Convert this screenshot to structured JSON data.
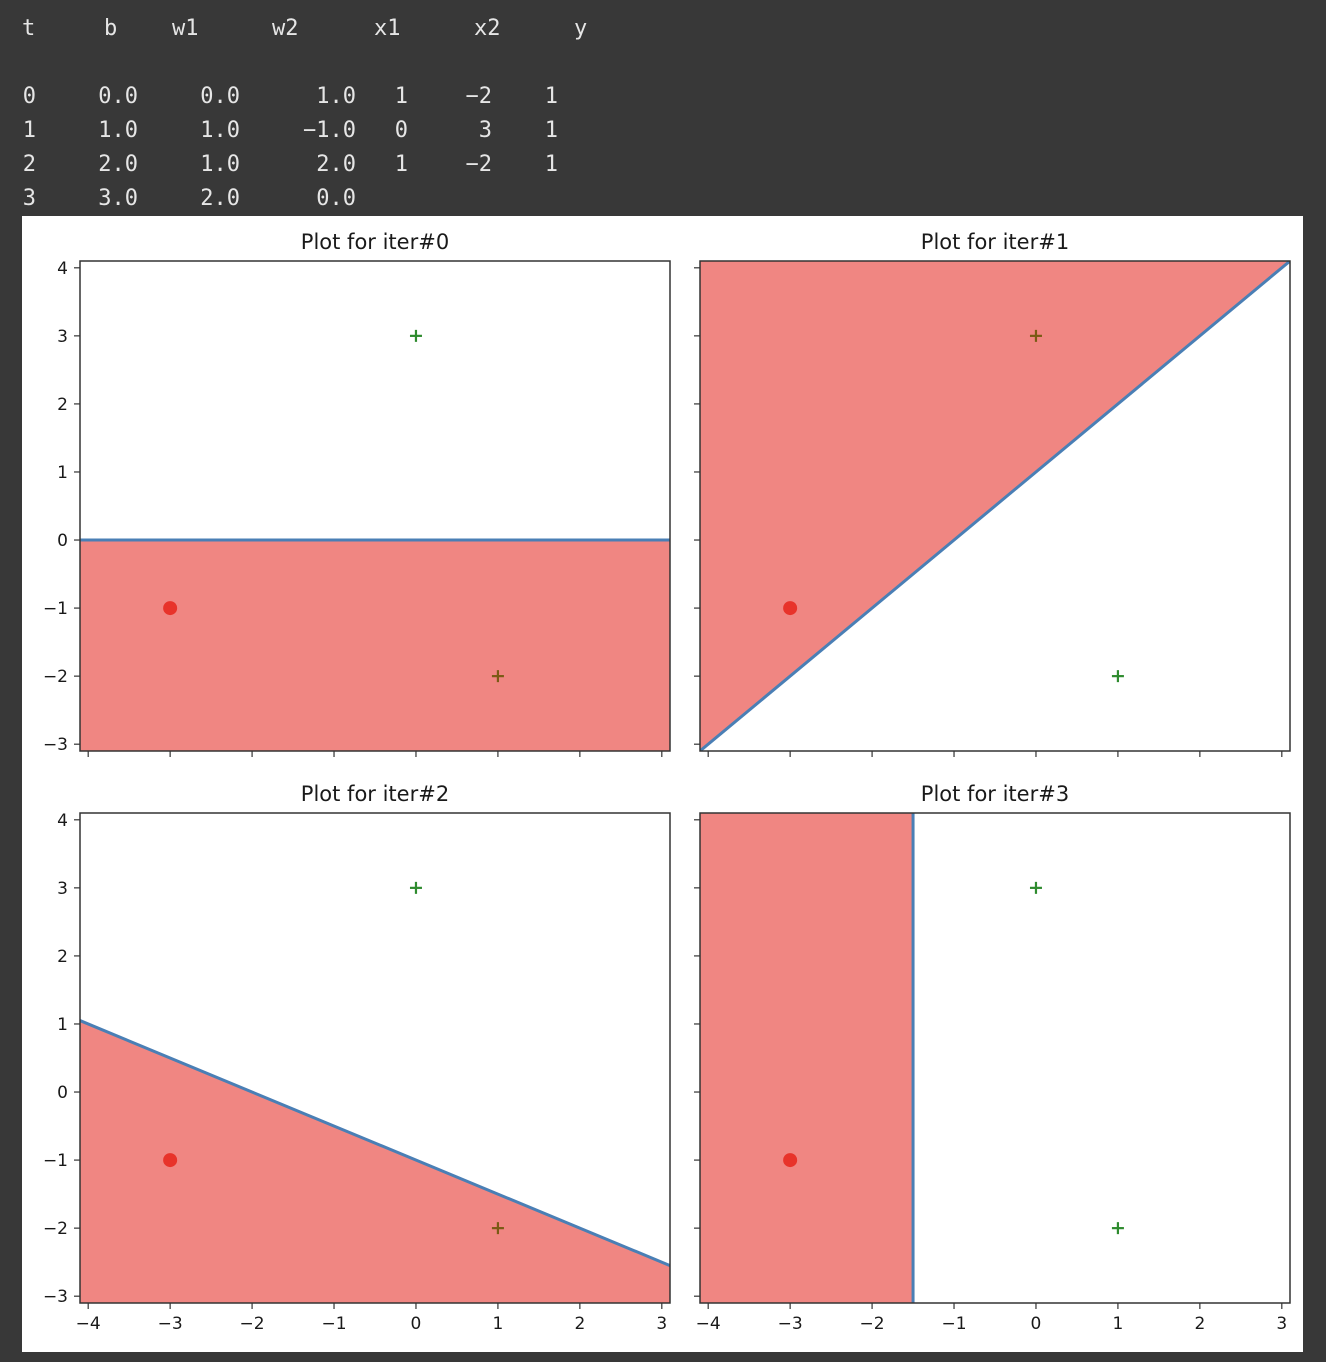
{
  "log": {
    "headers": [
      "t",
      "b",
      "w1",
      "w2",
      "x1",
      "x2",
      "y"
    ],
    "rows": [
      [
        "0",
        "0.0",
        "0.0",
        "1.0",
        "1",
        "-2",
        "1"
      ],
      [
        "1",
        "1.0",
        "1.0",
        "-1.0",
        "0",
        "3",
        "1"
      ],
      [
        "2",
        "2.0",
        "1.0",
        "2.0",
        "1",
        "-2",
        "1"
      ],
      [
        "3",
        "3.0",
        "2.0",
        "0.0",
        "",
        "",
        ""
      ]
    ]
  },
  "colors": {
    "background": "#383838",
    "text": "#e6e6e6",
    "region_fill": "#f08682",
    "boundary": "#4a7fb5",
    "negative_point": "#e8332a",
    "positive_point": "#2e8b2e"
  },
  "chart_data": [
    {
      "type": "scatter",
      "title": "Plot for iter#0",
      "xlim": [
        -4.1,
        3.1
      ],
      "ylim": [
        -3.1,
        4.1
      ],
      "xticks": [
        -4,
        -3,
        -2,
        -1,
        0,
        1,
        2,
        3
      ],
      "yticks": [
        -3,
        -2,
        -1,
        0,
        1,
        2,
        3,
        4
      ],
      "show_x_tick_labels": false,
      "show_y_tick_labels": true,
      "weights": {
        "b": 0.0,
        "w1": 0.0,
        "w2": 1.0
      },
      "negative_region": "b + w1*x + w2*y < 0",
      "points": [
        {
          "x": -3,
          "y": -1,
          "label": -1,
          "marker": "circle"
        },
        {
          "x": 0,
          "y": 3,
          "label": 1,
          "marker": "plus"
        },
        {
          "x": 1,
          "y": -2,
          "label": 1,
          "marker": "plus"
        }
      ]
    },
    {
      "type": "scatter",
      "title": "Plot for iter#1",
      "xlim": [
        -4.1,
        3.1
      ],
      "ylim": [
        -3.1,
        4.1
      ],
      "xticks": [
        -4,
        -3,
        -2,
        -1,
        0,
        1,
        2,
        3
      ],
      "yticks": [
        -3,
        -2,
        -1,
        0,
        1,
        2,
        3,
        4
      ],
      "show_x_tick_labels": false,
      "show_y_tick_labels": false,
      "weights": {
        "b": 1.0,
        "w1": 1.0,
        "w2": -1.0
      },
      "negative_region": "b + w1*x + w2*y < 0",
      "points": [
        {
          "x": -3,
          "y": -1,
          "label": -1,
          "marker": "circle"
        },
        {
          "x": 0,
          "y": 3,
          "label": 1,
          "marker": "plus"
        },
        {
          "x": 1,
          "y": -2,
          "label": 1,
          "marker": "plus"
        }
      ]
    },
    {
      "type": "scatter",
      "title": "Plot for iter#2",
      "xlim": [
        -4.1,
        3.1
      ],
      "ylim": [
        -3.1,
        4.1
      ],
      "xticks": [
        -4,
        -3,
        -2,
        -1,
        0,
        1,
        2,
        3
      ],
      "yticks": [
        -3,
        -2,
        -1,
        0,
        1,
        2,
        3,
        4
      ],
      "show_x_tick_labels": true,
      "show_y_tick_labels": true,
      "weights": {
        "b": 2.0,
        "w1": 1.0,
        "w2": 2.0
      },
      "negative_region": "b + w1*x + w2*y < 0",
      "points": [
        {
          "x": -3,
          "y": -1,
          "label": -1,
          "marker": "circle"
        },
        {
          "x": 0,
          "y": 3,
          "label": 1,
          "marker": "plus"
        },
        {
          "x": 1,
          "y": -2,
          "label": 1,
          "marker": "plus"
        }
      ]
    },
    {
      "type": "scatter",
      "title": "Plot for iter#3",
      "xlim": [
        -4.1,
        3.1
      ],
      "ylim": [
        -3.1,
        4.1
      ],
      "xticks": [
        -4,
        -3,
        -2,
        -1,
        0,
        1,
        2,
        3
      ],
      "yticks": [
        -3,
        -2,
        -1,
        0,
        1,
        2,
        3,
        4
      ],
      "show_x_tick_labels": true,
      "show_y_tick_labels": false,
      "weights": {
        "b": 3.0,
        "w1": 2.0,
        "w2": 0.0
      },
      "negative_region": "b + w1*x + w2*y < 0",
      "points": [
        {
          "x": -3,
          "y": -1,
          "label": -1,
          "marker": "circle"
        },
        {
          "x": 0,
          "y": 3,
          "label": 1,
          "marker": "plus"
        },
        {
          "x": 1,
          "y": -2,
          "label": 1,
          "marker": "plus"
        }
      ]
    }
  ]
}
